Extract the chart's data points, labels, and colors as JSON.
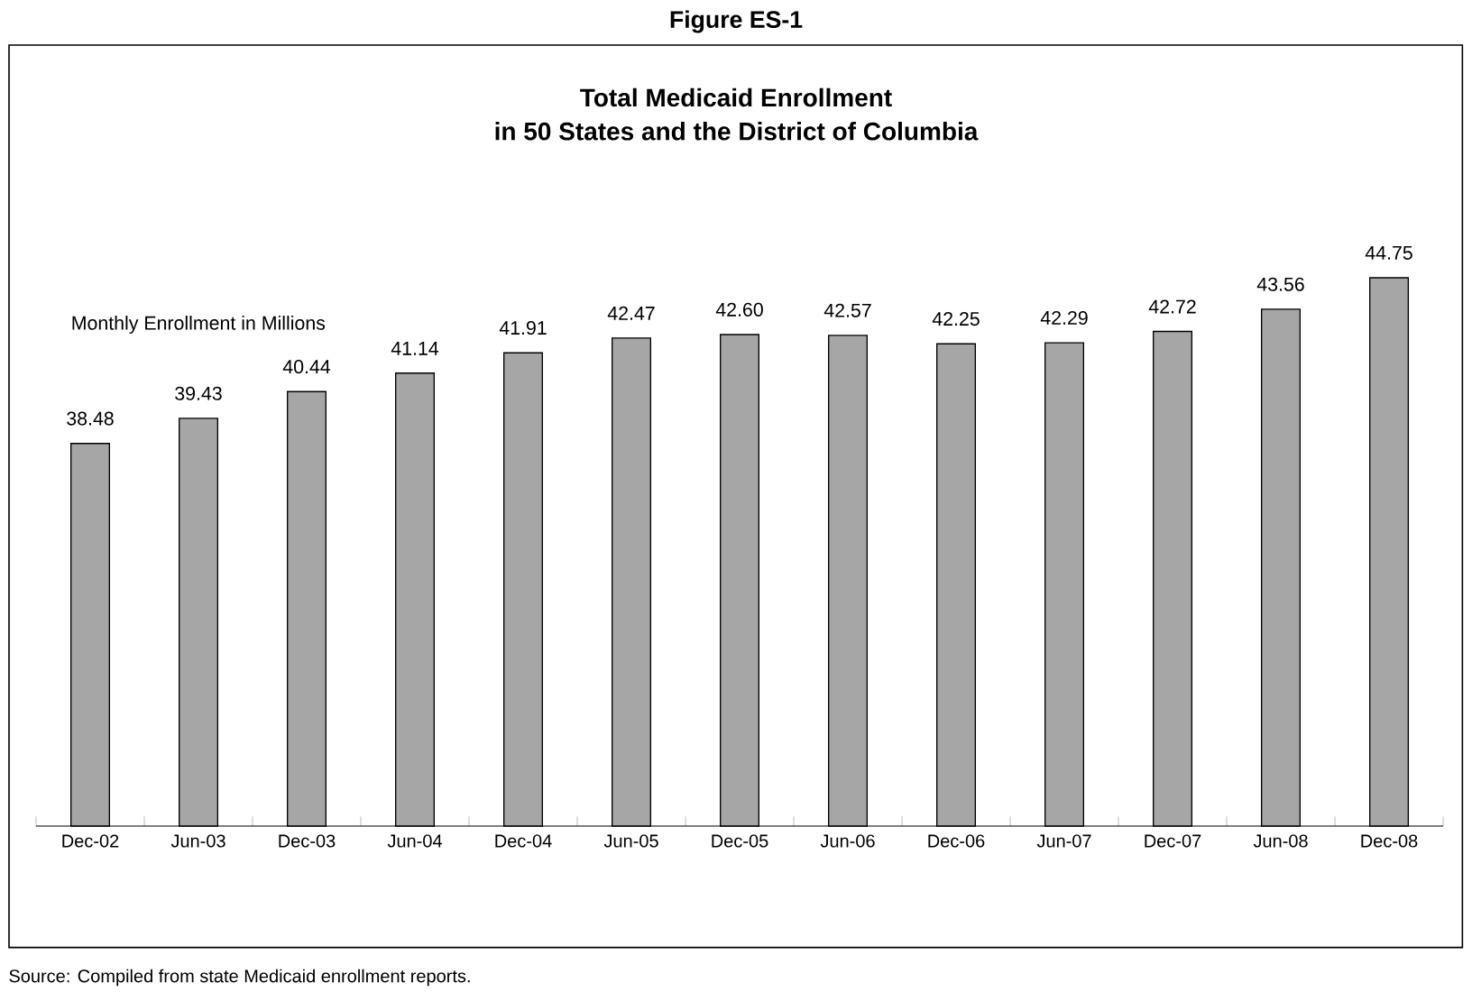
{
  "chart_data": {
    "type": "bar",
    "title": "Figure ES-1",
    "subtitle": "Total Medicaid Enrollment\nin 50 States and the District of Columbia",
    "ylabel": "Monthly Enrollment in Millions",
    "categories": [
      "Dec-02",
      "Jun-03",
      "Dec-03",
      "Jun-04",
      "Dec-04",
      "Jun-05",
      "Dec-05",
      "Jun-06",
      "Dec-06",
      "Jun-07",
      "Dec-07",
      "Jun-08",
      "Dec-08"
    ],
    "values": [
      38.48,
      39.43,
      40.44,
      41.14,
      41.91,
      42.47,
      42.6,
      42.57,
      42.25,
      42.29,
      42.72,
      43.56,
      44.75
    ],
    "value_labels": [
      "38.48",
      "39.43",
      "40.44",
      "41.14",
      "41.91",
      "42.47",
      "42.60",
      "42.57",
      "42.25",
      "42.29",
      "42.72",
      "43.56",
      "44.75"
    ],
    "color": "#a6a6a6",
    "ylim": [
      24,
      44.75
    ],
    "annotations": [
      "Source: Compiled from state Medicaid enrollment reports."
    ]
  }
}
